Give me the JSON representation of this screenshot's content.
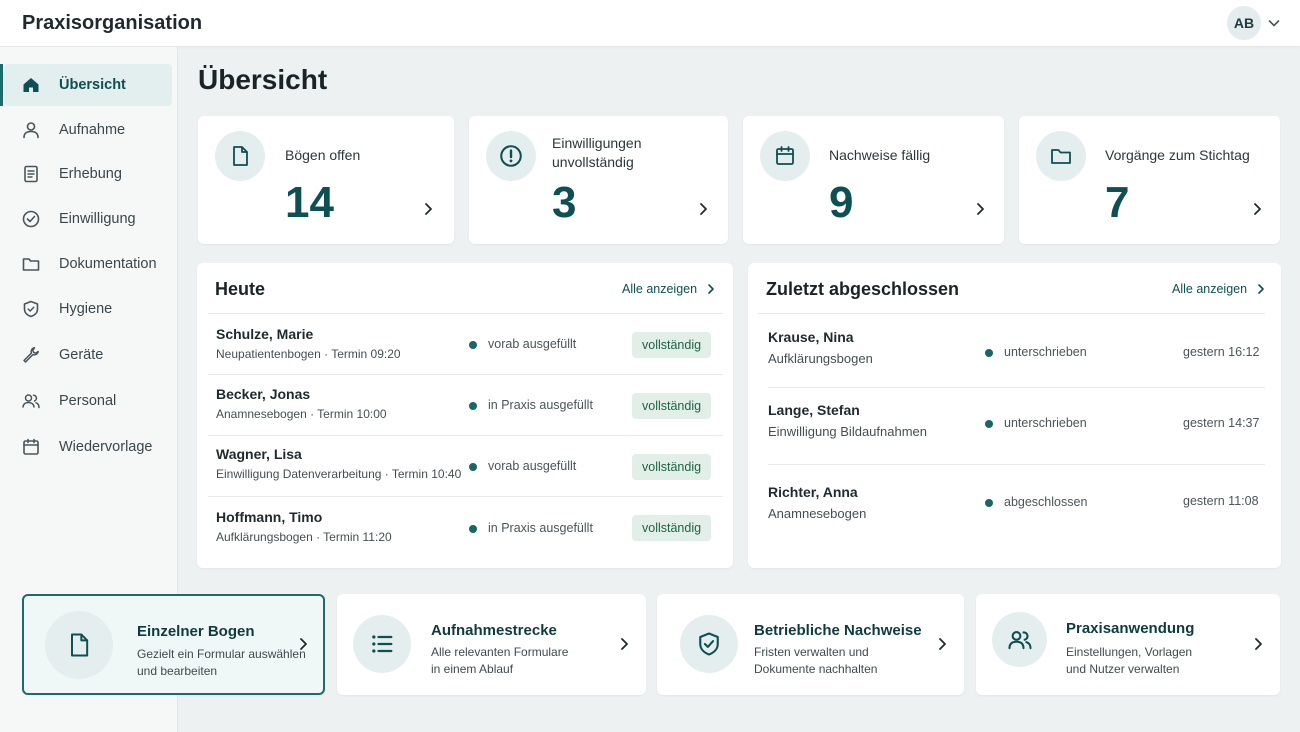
{
  "app": {
    "title": "Praxisorganisation",
    "user_initials": "AB"
  },
  "colors": {
    "accent": "#0e4f52",
    "badge_bg": "#e2efe9",
    "badge_text": "#1b6544",
    "dot": "#1b6565"
  },
  "sidebar": {
    "items": [
      {
        "label": "Übersicht",
        "icon": "home-icon",
        "active": true
      },
      {
        "label": "Aufnahme",
        "icon": "user-icon"
      },
      {
        "label": "Erhebung",
        "icon": "clipboard-icon"
      },
      {
        "label": "Einwilligung",
        "icon": "check-circle-icon"
      },
      {
        "label": "Dokumentation",
        "icon": "folder-icon"
      },
      {
        "label": "Hygiene",
        "icon": "shield-icon"
      },
      {
        "label": "Geräte",
        "icon": "wrench-icon"
      },
      {
        "label": "Personal",
        "icon": "users-icon"
      },
      {
        "label": "Wiedervorlage",
        "icon": "calendar-icon"
      }
    ]
  },
  "main": {
    "title": "Übersicht",
    "kpis": [
      {
        "label": "Bögen offen",
        "value": "14",
        "icon": "document-icon"
      },
      {
        "label_line1": "Einwilligungen",
        "label_line2": "unvollständig",
        "value": "3",
        "icon": "alert-circle-icon"
      },
      {
        "label": "Nachweise fällig",
        "value": "9",
        "icon": "calendar-icon"
      },
      {
        "label": "Vorgänge zum Stichtag",
        "value": "7",
        "icon": "folder-icon"
      }
    ],
    "today": {
      "title": "Heute",
      "link": "Alle anzeigen",
      "rows": [
        {
          "name": "Schulze, Marie",
          "sub": "Neupatientenbogen · Termin 09:20",
          "status": "vorab ausgefüllt",
          "badge": "vollständig"
        },
        {
          "name": "Becker, Jonas",
          "sub": "Anamnesebogen · Termin 10:00",
          "status": "in Praxis ausgefüllt",
          "badge": "vollständig"
        },
        {
          "name": "Wagner, Lisa",
          "sub": "Einwilligung Datenverarbeitung · Termin 10:40",
          "status": "vorab ausgefüllt",
          "badge": "vollständig"
        },
        {
          "name": "Hoffmann, Timo",
          "sub": "Aufklärungsbogen · Termin 11:20",
          "status": "in Praxis ausgefüllt",
          "badge": "vollständig"
        }
      ]
    },
    "recent": {
      "title": "Zuletzt abgeschlossen",
      "link": "Alle anzeigen",
      "rows": [
        {
          "name": "Krause, Nina",
          "sub": "Aufklärungsbogen",
          "status": "unterschrieben",
          "time": "gestern 16:12"
        },
        {
          "name": "Lange, Stefan",
          "sub": "Einwilligung Bildaufnahmen",
          "status": "unterschrieben",
          "time": "gestern 14:37"
        },
        {
          "name": "Richter, Anna",
          "sub": "Anamnesebogen",
          "status": "abgeschlossen",
          "time": "gestern 11:08"
        }
      ]
    },
    "actions": [
      {
        "title": "Einzelner Bogen",
        "desc1": "Gezielt ein Formular auswählen",
        "desc2": "und bearbeiten",
        "icon": "document-icon",
        "active": true
      },
      {
        "title": "Aufnahmestrecke",
        "desc1": "Alle relevanten Formulare",
        "desc2": "in einem Ablauf",
        "icon": "list-icon"
      },
      {
        "title": "Betriebliche Nachweise",
        "desc1": "Fristen verwalten und",
        "desc2": "Dokumente nachhalten",
        "icon": "shield-check-icon"
      },
      {
        "title": "Praxisanwendung",
        "desc1": "Einstellungen, Vorlagen",
        "desc2": "und Nutzer verwalten",
        "icon": "users-icon"
      }
    ]
  }
}
